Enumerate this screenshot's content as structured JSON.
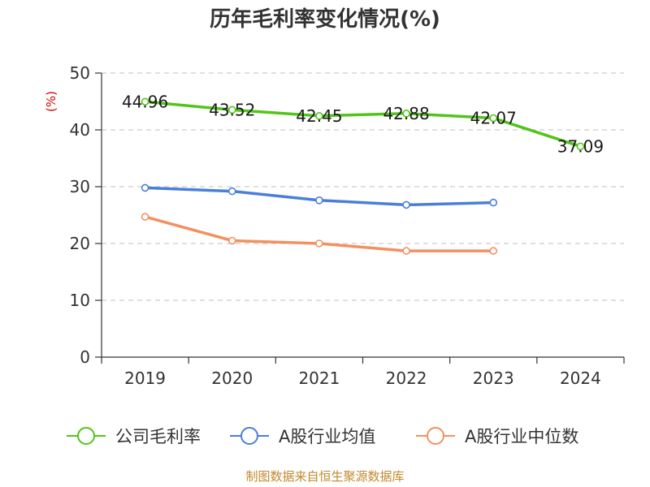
{
  "chart_data": {
    "type": "line",
    "title": "历年毛利率变化情况(%)",
    "ylabel": "(%)",
    "xlabel": "",
    "categories": [
      "2019",
      "2020",
      "2021",
      "2022",
      "2023",
      "2024"
    ],
    "ylim": [
      0,
      50
    ],
    "yticks": [
      0,
      10,
      20,
      30,
      40,
      50
    ],
    "grid": true,
    "legend_position": "bottom",
    "series": [
      {
        "name": "公司毛利率",
        "color": "#52c41a",
        "values": [
          44.96,
          43.52,
          42.45,
          42.88,
          42.07,
          37.09
        ],
        "labels": [
          "44.96",
          "43.52",
          "42.45",
          "42.88",
          "42.07",
          "37.09"
        ]
      },
      {
        "name": "A股行业均值",
        "color": "#4a7fd9",
        "values": [
          29.8,
          29.2,
          27.6,
          26.8,
          27.2,
          null
        ]
      },
      {
        "name": "A股行业中位数",
        "color": "#f39060",
        "values": [
          24.7,
          20.5,
          20.0,
          18.7,
          18.7,
          null
        ]
      }
    ],
    "source": "制图数据来自恒生聚源数据库"
  }
}
